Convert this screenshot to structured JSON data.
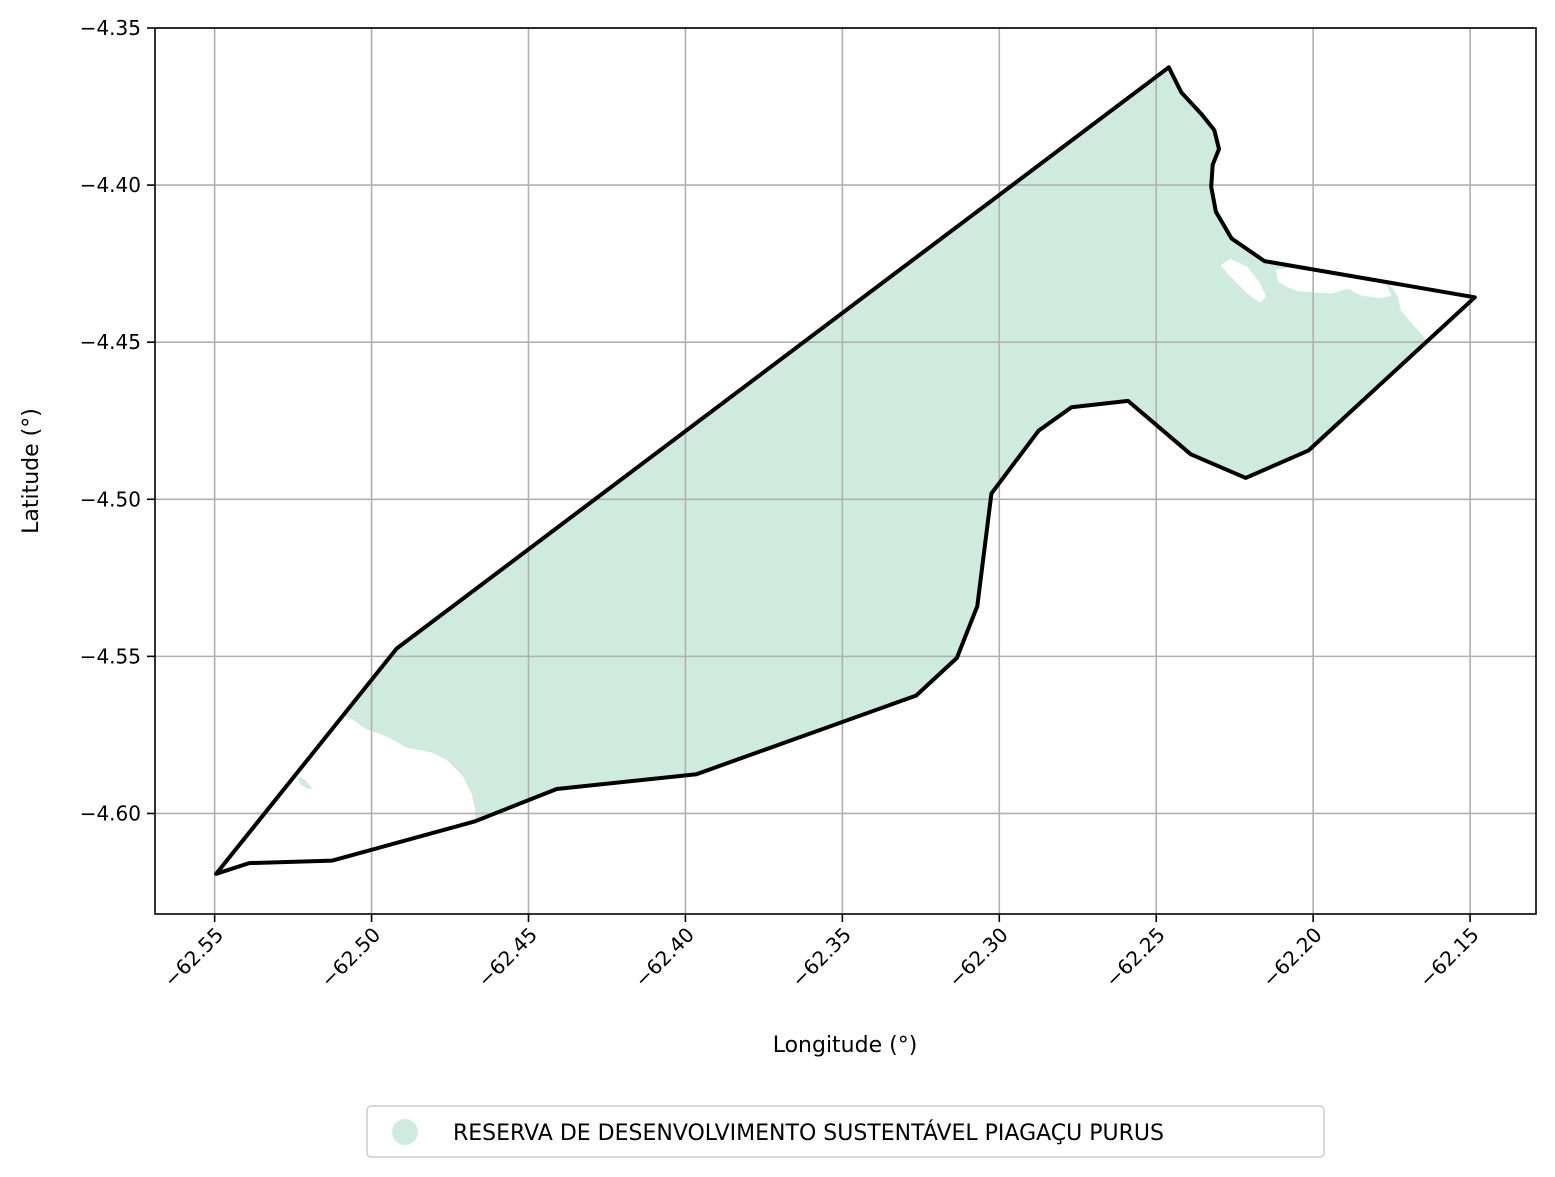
{
  "chart_data": {
    "type": "map",
    "xlabel": "Longitude (°)",
    "ylabel": "Latitude (°)",
    "xlim": [
      -62.569,
      -62.129
    ],
    "ylim": [
      -4.632,
      -4.35
    ],
    "grid": true,
    "x_ticks": [
      {
        "value": -62.55,
        "label": "−62.55"
      },
      {
        "value": -62.5,
        "label": "−62.50"
      },
      {
        "value": -62.45,
        "label": "−62.45"
      },
      {
        "value": -62.4,
        "label": "−62.40"
      },
      {
        "value": -62.35,
        "label": "−62.35"
      },
      {
        "value": -62.3,
        "label": "−62.30"
      },
      {
        "value": -62.25,
        "label": "−62.25"
      },
      {
        "value": -62.2,
        "label": "−62.20"
      },
      {
        "value": -62.15,
        "label": "−62.15"
      }
    ],
    "y_ticks": [
      {
        "value": -4.35,
        "label": "−4.35"
      },
      {
        "value": -4.4,
        "label": "−4.40"
      },
      {
        "value": -4.45,
        "label": "−4.45"
      },
      {
        "value": -4.5,
        "label": "−4.50"
      },
      {
        "value": -4.55,
        "label": "−4.55"
      },
      {
        "value": -4.6,
        "label": "−4.60"
      }
    ],
    "fill_color": "#cfebde",
    "outline_color": "#000000",
    "legend": {
      "placement": "bottom-center",
      "label": "RESERVA DE DESENVOLVIMENTO SUSTENTÁVEL PIAGAÇU PURUS"
    },
    "outline": [
      [
        -62.5495,
        -4.6192
      ],
      [
        -62.539,
        -4.6158
      ],
      [
        -62.5125,
        -4.615
      ],
      [
        -62.467,
        -4.6025
      ],
      [
        -62.441,
        -4.5922
      ],
      [
        -62.3965,
        -4.5875
      ],
      [
        -62.3265,
        -4.5625
      ],
      [
        -62.3135,
        -4.5505
      ],
      [
        -62.307,
        -4.534
      ],
      [
        -62.3025,
        -4.4982
      ],
      [
        -62.2875,
        -4.4782
      ],
      [
        -62.277,
        -4.4707
      ],
      [
        -62.259,
        -4.4687
      ],
      [
        -62.239,
        -4.4857
      ],
      [
        -62.2215,
        -4.4932
      ],
      [
        -62.2015,
        -4.4845
      ],
      [
        -62.1485,
        -4.4357
      ],
      [
        -62.2155,
        -4.4242
      ],
      [
        -62.226,
        -4.417
      ],
      [
        -62.231,
        -4.4085
      ],
      [
        -62.2325,
        -4.4005
      ],
      [
        -62.232,
        -4.3935
      ],
      [
        -62.23,
        -4.3885
      ],
      [
        -62.2315,
        -4.3825
      ],
      [
        -62.2355,
        -4.3775
      ],
      [
        -62.242,
        -4.3705
      ],
      [
        -62.246,
        -4.3625
      ],
      [
        -62.492,
        -4.5475
      ],
      [
        -62.5495,
        -4.6192
      ]
    ],
    "filled_area": [
      [
        -62.246,
        -4.3625
      ],
      [
        -62.242,
        -4.3705
      ],
      [
        -62.2355,
        -4.3775
      ],
      [
        -62.2315,
        -4.3825
      ],
      [
        -62.23,
        -4.3885
      ],
      [
        -62.232,
        -4.3935
      ],
      [
        -62.2325,
        -4.4005
      ],
      [
        -62.231,
        -4.4085
      ],
      [
        -62.226,
        -4.417
      ],
      [
        -62.2155,
        -4.4242
      ],
      [
        -62.176,
        -4.431
      ],
      [
        -62.173,
        -4.4355
      ],
      [
        -62.172,
        -4.44
      ],
      [
        -62.164,
        -4.4492
      ],
      [
        -62.148,
        -4.436
      ],
      [
        -62.2015,
        -4.4845
      ],
      [
        -62.2215,
        -4.4932
      ],
      [
        -62.239,
        -4.4857
      ],
      [
        -62.259,
        -4.4687
      ],
      [
        -62.277,
        -4.4707
      ],
      [
        -62.2875,
        -4.4782
      ],
      [
        -62.3025,
        -4.4982
      ],
      [
        -62.307,
        -4.534
      ],
      [
        -62.3135,
        -4.5505
      ],
      [
        -62.3265,
        -4.5625
      ],
      [
        -62.3965,
        -4.5875
      ],
      [
        -62.441,
        -4.5922
      ],
      [
        -62.467,
        -4.6025
      ],
      [
        -62.467,
        -4.599
      ],
      [
        -62.468,
        -4.594
      ],
      [
        -62.471,
        -4.588
      ],
      [
        -62.476,
        -4.583
      ],
      [
        -62.481,
        -4.5805
      ],
      [
        -62.489,
        -4.579
      ],
      [
        -62.494,
        -4.576
      ],
      [
        -62.502,
        -4.573
      ],
      [
        -62.506,
        -4.57
      ],
      [
        -62.509,
        -4.569
      ],
      [
        -62.51,
        -4.57
      ],
      [
        -62.492,
        -4.5475
      ],
      [
        -62.246,
        -4.3625
      ]
    ],
    "filled_islands": [
      [
        [
          -62.5225,
          -4.591
        ],
        [
          -62.52,
          -4.5922
        ],
        [
          -62.519,
          -4.592
        ],
        [
          -62.521,
          -4.5895
        ],
        [
          -62.5225,
          -4.5885
        ],
        [
          -62.5235,
          -4.589
        ]
      ]
    ],
    "unfilled_patches": [
      [
        [
          -62.221,
          -4.426
        ],
        [
          -62.217,
          -4.431
        ],
        [
          -62.215,
          -4.4355
        ],
        [
          -62.217,
          -4.4375
        ],
        [
          -62.221,
          -4.4345
        ],
        [
          -62.224,
          -4.4315
        ],
        [
          -62.227,
          -4.4285
        ],
        [
          -62.2295,
          -4.4255
        ],
        [
          -62.2265,
          -4.4235
        ],
        [
          -62.224,
          -4.4245
        ]
      ],
      [
        [
          -62.205,
          -4.4338
        ],
        [
          -62.199,
          -4.4342
        ],
        [
          -62.194,
          -4.4345
        ],
        [
          -62.189,
          -4.433
        ],
        [
          -62.185,
          -4.435
        ],
        [
          -62.179,
          -4.436
        ],
        [
          -62.175,
          -4.4352
        ],
        [
          -62.177,
          -4.431
        ],
        [
          -62.184,
          -4.429
        ],
        [
          -62.195,
          -4.427
        ],
        [
          -62.205,
          -4.426
        ],
        [
          -62.212,
          -4.427
        ],
        [
          -62.211,
          -4.431
        ],
        [
          -62.207,
          -4.433
        ]
      ]
    ]
  }
}
